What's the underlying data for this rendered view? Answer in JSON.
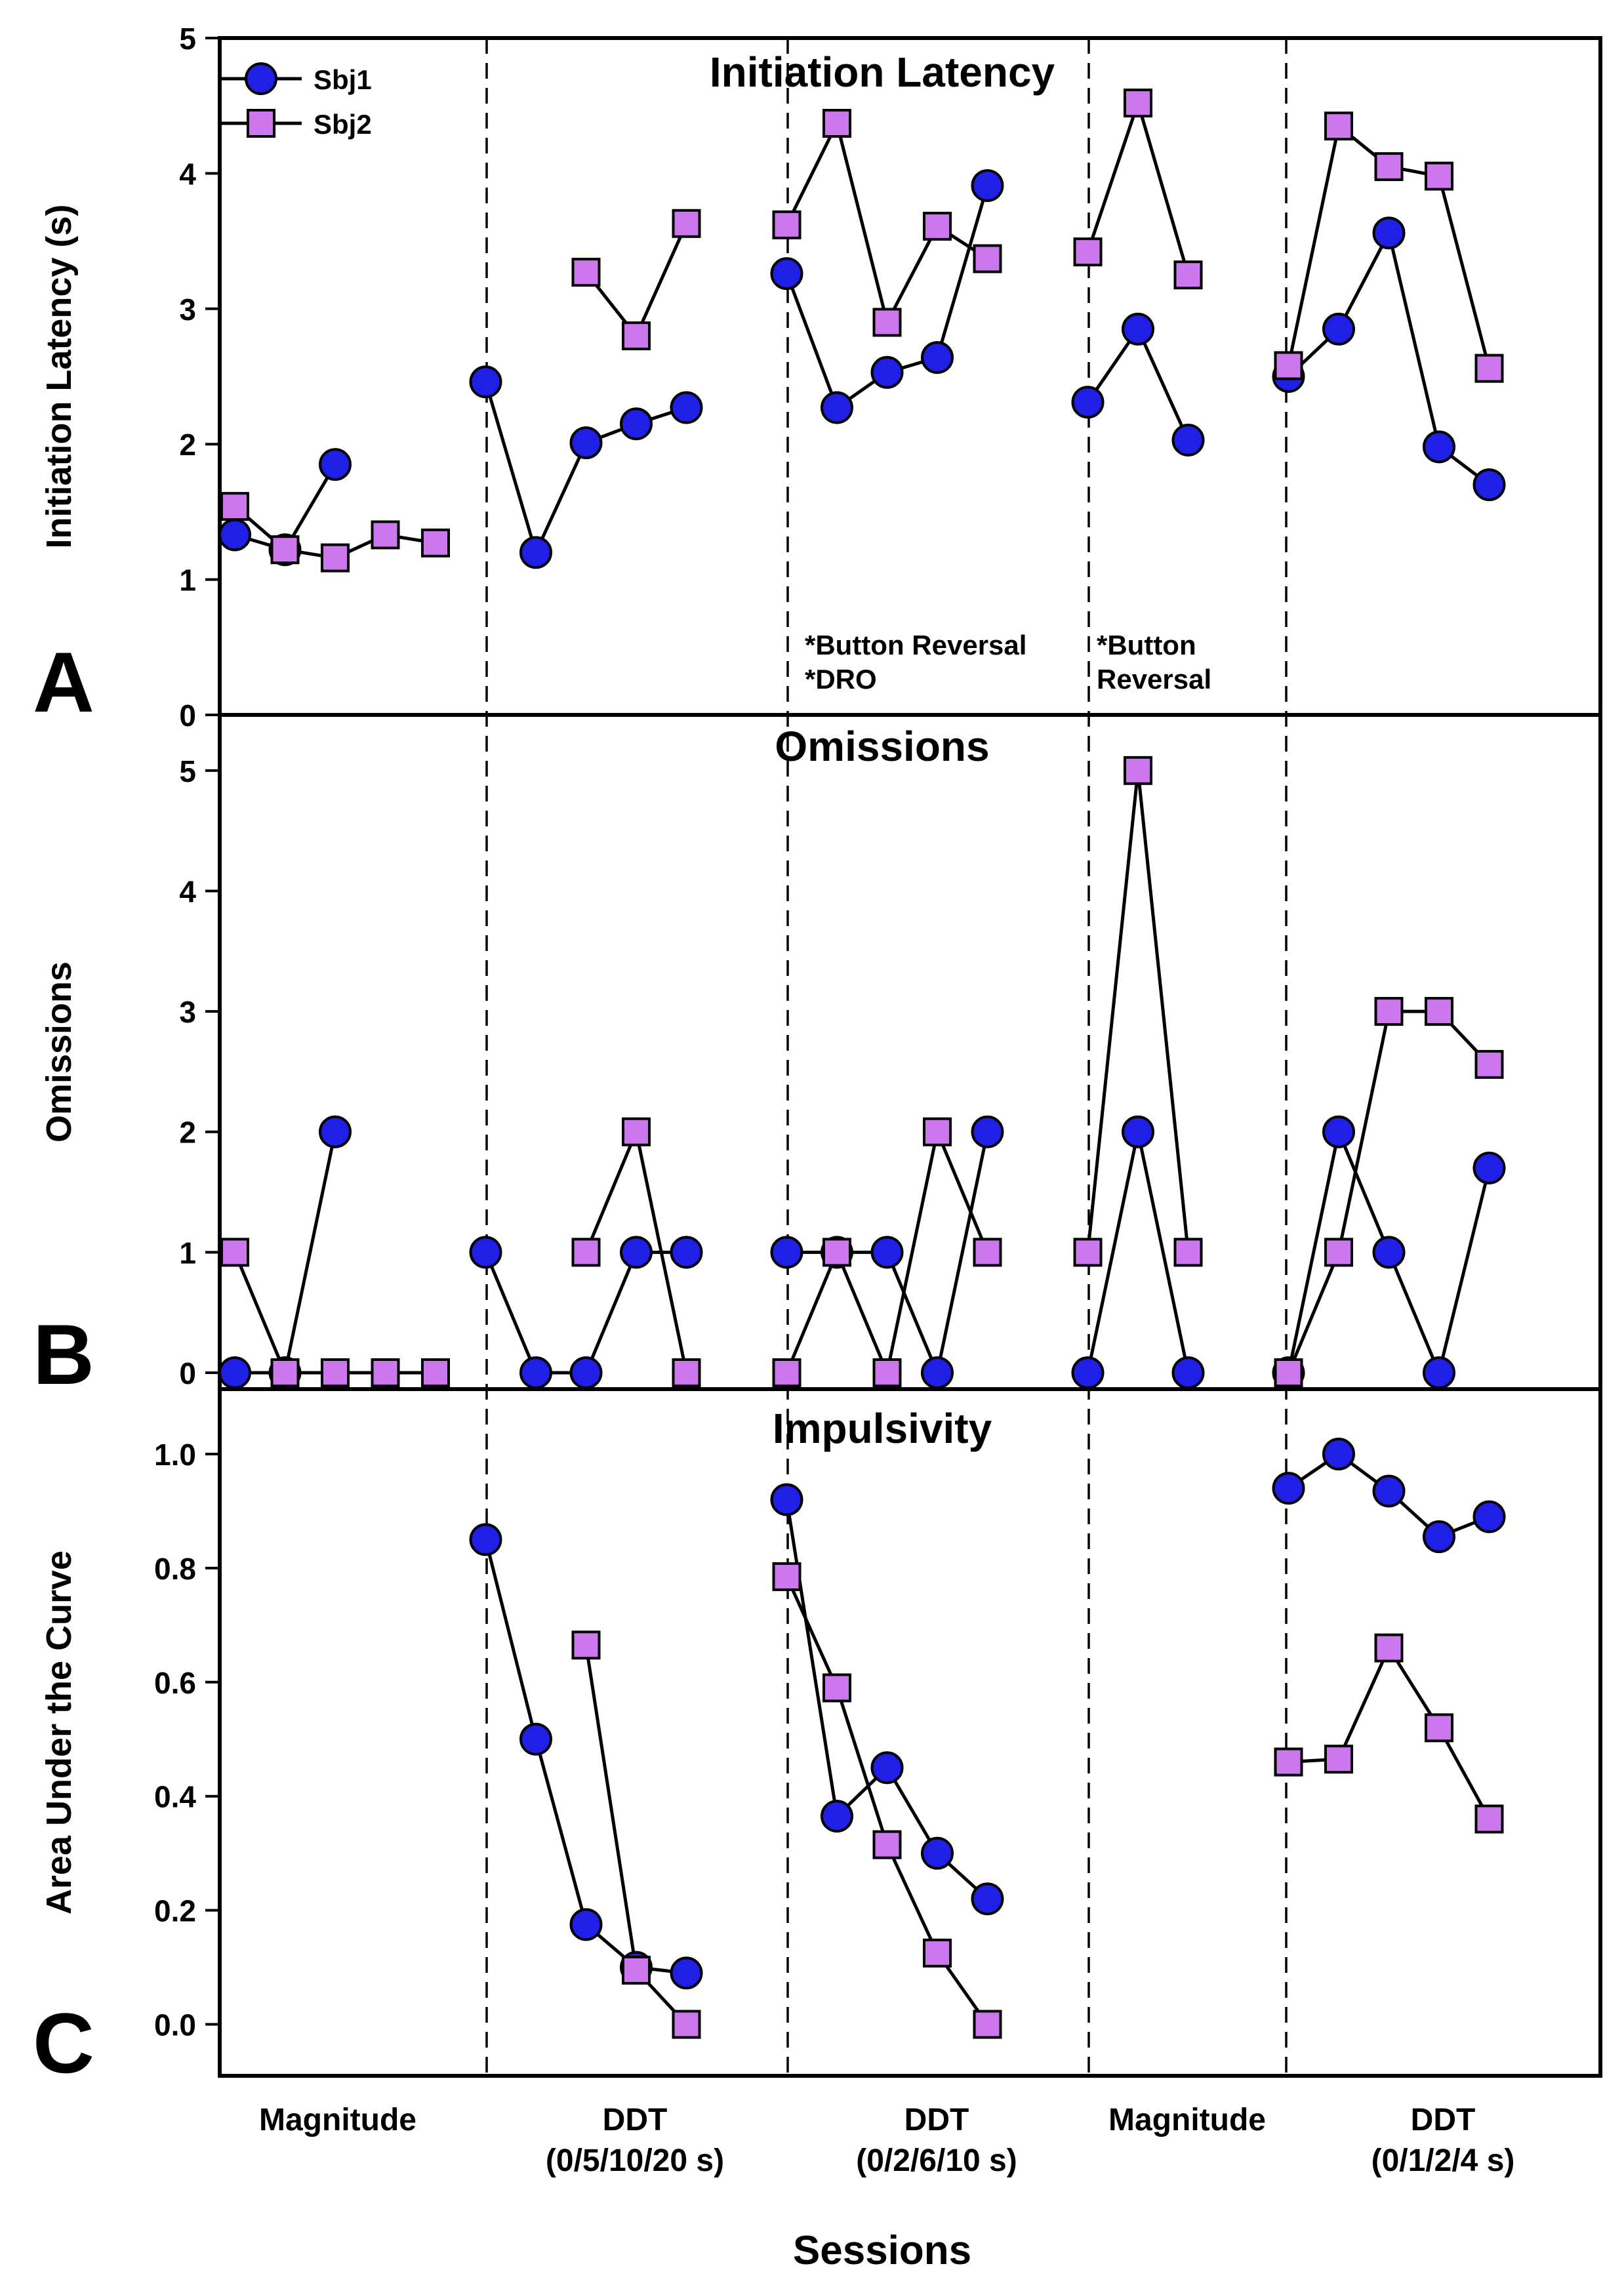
{
  "chart_data": {
    "type": "line",
    "xlabel": "Sessions",
    "phases": [
      {
        "label_line1": "Magnitude",
        "label_line2": ""
      },
      {
        "label_line1": "DDT",
        "label_line2": "(0/5/10/20 s)"
      },
      {
        "label_line1": "DDT",
        "label_line2": "(0/2/6/10 s)"
      },
      {
        "label_line1": "Magnitude",
        "label_line2": ""
      },
      {
        "label_line1": "DDT",
        "label_line2": "(0/1/2/4 s)"
      }
    ],
    "legend": [
      {
        "name": "Sbj1",
        "marker": "circle"
      },
      {
        "name": "Sbj2",
        "marker": "square"
      }
    ],
    "colors": {
      "sbj1": "#1f1fe6",
      "sbj2": "#cc77ee",
      "line": "#000000"
    },
    "panels": [
      {
        "letter": "A",
        "title": "Initiation Latency",
        "ylabel": "Initiation Latency (s)",
        "ylim": [
          0,
          5
        ],
        "yticks": [
          "0",
          "1",
          "2",
          "3",
          "4",
          "5"
        ],
        "annotations": [
          {
            "line1": "*Button Reversal",
            "line2": "*DRO"
          },
          {
            "line1": "*Button",
            "line2": " Reversal"
          }
        ],
        "series": [
          {
            "name": "Sbj1",
            "segments": [
              [
                [
                  1,
                  1.33
                ],
                [
                  2,
                  1.22
                ],
                [
                  3,
                  1.85
                ]
              ],
              [
                [
                  6,
                  2.46
                ],
                [
                  7,
                  1.2
                ],
                [
                  8,
                  2.01
                ],
                [
                  9,
                  2.15
                ],
                [
                  10,
                  2.27
                ]
              ],
              [
                [
                  12,
                  3.26
                ],
                [
                  13,
                  2.27
                ],
                [
                  14,
                  2.53
                ],
                [
                  15,
                  2.64
                ],
                [
                  16,
                  3.91
                ]
              ],
              [
                [
                  18,
                  2.31
                ],
                [
                  19,
                  2.85
                ],
                [
                  20,
                  2.03
                ]
              ],
              [
                [
                  22,
                  2.5
                ],
                [
                  23,
                  2.85
                ],
                [
                  24,
                  3.56
                ],
                [
                  25,
                  1.98
                ],
                [
                  26,
                  1.7
                ]
              ]
            ]
          },
          {
            "name": "Sbj2",
            "segments": [
              [
                [
                  1,
                  1.54
                ],
                [
                  2,
                  1.22
                ],
                [
                  3,
                  1.16
                ],
                [
                  4,
                  1.33
                ],
                [
                  5,
                  1.27
                ]
              ],
              [
                [
                  8,
                  3.27
                ],
                [
                  9,
                  2.8
                ],
                [
                  10,
                  3.63
                ]
              ],
              [
                [
                  12,
                  3.62
                ],
                [
                  13,
                  4.37
                ],
                [
                  14,
                  2.9
                ],
                [
                  15,
                  3.61
                ],
                [
                  16,
                  3.37
                ]
              ],
              [
                [
                  18,
                  3.42
                ],
                [
                  19,
                  4.52
                ],
                [
                  20,
                  3.25
                ]
              ],
              [
                [
                  22,
                  2.58
                ],
                [
                  23,
                  4.35
                ],
                [
                  24,
                  4.05
                ],
                [
                  25,
                  3.98
                ],
                [
                  26,
                  2.56
                ]
              ]
            ]
          }
        ]
      },
      {
        "letter": "B",
        "title": "Omissions",
        "ylabel": "Omissions",
        "ylim": [
          0,
          5.5
        ],
        "yticks": [
          "0",
          "1",
          "2",
          "3",
          "4",
          "5"
        ],
        "annotations": [],
        "series": [
          {
            "name": "Sbj1",
            "segments": [
              [
                [
                  1,
                  0
                ],
                [
                  2,
                  0
                ],
                [
                  3,
                  2
                ]
              ],
              [
                [
                  6,
                  1
                ],
                [
                  7,
                  0
                ],
                [
                  8,
                  0
                ],
                [
                  9,
                  1
                ],
                [
                  10,
                  1
                ]
              ],
              [
                [
                  12,
                  1
                ],
                [
                  13,
                  1
                ],
                [
                  14,
                  1
                ],
                [
                  15,
                  0
                ],
                [
                  16,
                  2
                ]
              ],
              [
                [
                  18,
                  0
                ],
                [
                  19,
                  2
                ],
                [
                  20,
                  0
                ]
              ],
              [
                [
                  22,
                  0
                ],
                [
                  23,
                  2
                ],
                [
                  24,
                  1
                ],
                [
                  25,
                  0
                ],
                [
                  26,
                  1.7
                ]
              ]
            ]
          },
          {
            "name": "Sbj2",
            "segments": [
              [
                [
                  1,
                  1
                ],
                [
                  2,
                  0
                ],
                [
                  3,
                  0
                ],
                [
                  4,
                  0
                ],
                [
                  5,
                  0
                ]
              ],
              [
                [
                  8,
                  1
                ],
                [
                  9,
                  2
                ],
                [
                  10,
                  0
                ]
              ],
              [
                [
                  12,
                  0
                ],
                [
                  13,
                  1
                ],
                [
                  14,
                  0
                ],
                [
                  15,
                  2
                ],
                [
                  16,
                  1
                ]
              ],
              [
                [
                  18,
                  1
                ],
                [
                  19,
                  5
                ],
                [
                  20,
                  1
                ]
              ],
              [
                [
                  22,
                  0
                ],
                [
                  23,
                  1
                ],
                [
                  24,
                  3
                ],
                [
                  25,
                  3
                ],
                [
                  26,
                  2.56
                ]
              ]
            ]
          }
        ]
      },
      {
        "letter": "C",
        "title": "Impulsivity",
        "ylabel": "Area Under the Curve",
        "ylim": [
          -0.05,
          1.1
        ],
        "yticks": [
          "0.0",
          "0.2",
          "0.4",
          "0.6",
          "0.8",
          "1.0"
        ],
        "annotations": [],
        "series": [
          {
            "name": "Sbj1",
            "segments": [
              [
                [
                  6,
                  0.85
                ],
                [
                  7,
                  0.5
                ],
                [
                  8,
                  0.175
                ],
                [
                  9,
                  0.1
                ],
                [
                  10,
                  0.09
                ]
              ],
              [
                [
                  12,
                  0.92
                ],
                [
                  13,
                  0.365
                ],
                [
                  14,
                  0.45
                ],
                [
                  15,
                  0.3
                ],
                [
                  16,
                  0.22
                ]
              ],
              [
                [
                  22,
                  0.94
                ],
                [
                  23,
                  1.0
                ],
                [
                  24,
                  0.935
                ],
                [
                  25,
                  0.855
                ],
                [
                  26,
                  0.89
                ]
              ]
            ]
          },
          {
            "name": "Sbj2",
            "segments": [
              [
                [
                  8,
                  0.665
                ],
                [
                  9,
                  0.095
                ],
                [
                  10,
                  0.0
                ]
              ],
              [
                [
                  12,
                  0.785
                ],
                [
                  13,
                  0.59
                ],
                [
                  14,
                  0.315
                ],
                [
                  15,
                  0.125
                ],
                [
                  16,
                  0.0
                ]
              ],
              [
                [
                  22,
                  0.46
                ],
                [
                  23,
                  0.465
                ],
                [
                  24,
                  0.66
                ],
                [
                  25,
                  0.52
                ],
                [
                  26,
                  0.36
                ]
              ]
            ]
          }
        ]
      }
    ]
  }
}
